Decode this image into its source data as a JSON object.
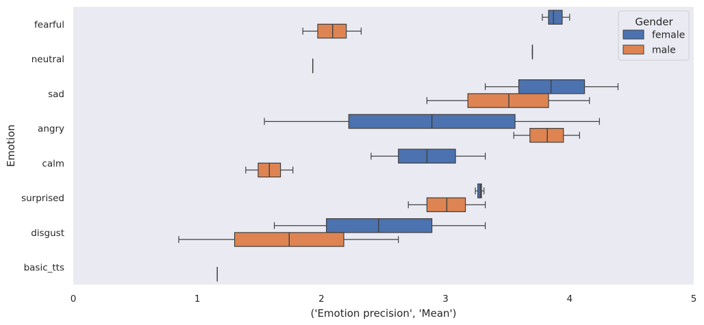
{
  "chart_data": {
    "type": "boxplot",
    "orientation": "horizontal",
    "xlabel": "('Emotion precision', 'Mean')",
    "ylabel": "Emotion",
    "xlim": [
      0,
      5
    ],
    "xticks": [
      0,
      1,
      2,
      3,
      4,
      5
    ],
    "grid": false,
    "legend": {
      "title": "Gender",
      "placement": "top-right"
    },
    "categories": [
      "fearful",
      "neutral",
      "sad",
      "angry",
      "calm",
      "surprised",
      "disgust",
      "basic_tts"
    ],
    "series": [
      {
        "name": "female",
        "color": "#4c72b0",
        "boxes": [
          {
            "category": "fearful",
            "whislo": 3.78,
            "q1": 3.83,
            "med": 3.87,
            "q3": 3.94,
            "whishi": 4.0
          },
          {
            "category": "neutral",
            "whislo": 3.7,
            "q1": 3.7,
            "med": 3.7,
            "q3": 3.7,
            "whishi": 3.7
          },
          {
            "category": "sad",
            "whislo": 3.32,
            "q1": 3.59,
            "med": 3.85,
            "q3": 4.12,
            "whishi": 4.39
          },
          {
            "category": "angry",
            "whislo": 1.54,
            "q1": 2.22,
            "med": 2.89,
            "q3": 3.56,
            "whishi": 4.24
          },
          {
            "category": "calm",
            "whislo": 2.4,
            "q1": 2.62,
            "med": 2.85,
            "q3": 3.08,
            "whishi": 3.32
          },
          {
            "category": "surprised",
            "whislo": 3.24,
            "q1": 3.26,
            "med": 3.28,
            "q3": 3.29,
            "whishi": 3.31
          },
          {
            "category": "disgust",
            "whislo": 1.62,
            "q1": 2.04,
            "med": 2.46,
            "q3": 2.89,
            "whishi": 3.32
          }
        ]
      },
      {
        "name": "male",
        "color": "#dd8452",
        "boxes": [
          {
            "category": "fearful",
            "whislo": 1.85,
            "q1": 1.97,
            "med": 2.09,
            "q3": 2.2,
            "whishi": 2.32
          },
          {
            "category": "neutral",
            "whislo": 1.93,
            "q1": 1.93,
            "med": 1.93,
            "q3": 1.93,
            "whishi": 1.93
          },
          {
            "category": "sad",
            "whislo": 2.85,
            "q1": 3.18,
            "med": 3.51,
            "q3": 3.83,
            "whishi": 4.16
          },
          {
            "category": "angry",
            "whislo": 3.55,
            "q1": 3.68,
            "med": 3.82,
            "q3": 3.95,
            "whishi": 4.08
          },
          {
            "category": "calm",
            "whislo": 1.39,
            "q1": 1.49,
            "med": 1.58,
            "q3": 1.67,
            "whishi": 1.77
          },
          {
            "category": "surprised",
            "whislo": 2.7,
            "q1": 2.85,
            "med": 3.01,
            "q3": 3.16,
            "whishi": 3.32
          },
          {
            "category": "disgust",
            "whislo": 0.85,
            "q1": 1.3,
            "med": 1.74,
            "q3": 2.18,
            "whishi": 2.62
          },
          {
            "category": "basic_tts",
            "whislo": 1.16,
            "q1": 1.16,
            "med": 1.16,
            "q3": 1.16,
            "whishi": 1.16
          }
        ]
      }
    ]
  }
}
